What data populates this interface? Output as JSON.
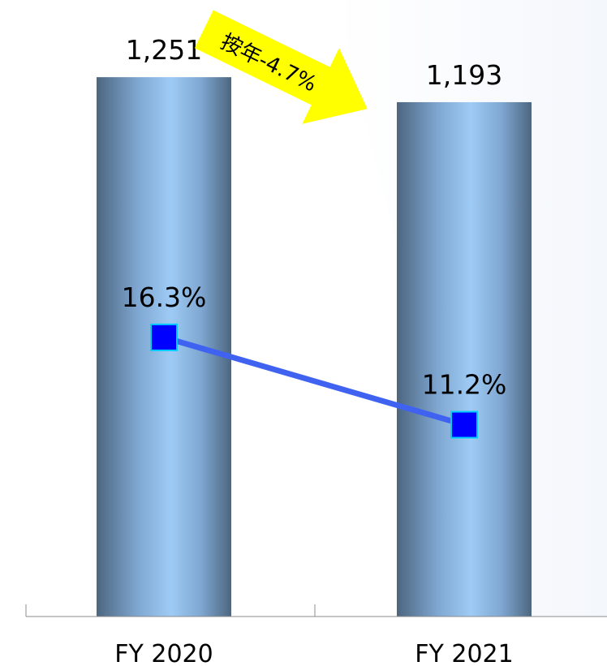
{
  "chart_data": {
    "type": "bar",
    "categories": [
      "FY 2020",
      "FY 2021"
    ],
    "series": [
      {
        "values": [
          1251,
          1193
        ],
        "value_labels": [
          "1,251",
          "1,193"
        ],
        "color": "#9ecbf5"
      },
      {
        "type": "line",
        "values": [
          16.3,
          11.2
        ],
        "value_labels": [
          "16.3%",
          "11.2%"
        ],
        "color": "#3f63f0",
        "marker_color": "#0000ff"
      }
    ],
    "annotation": {
      "text": "按年-4.7%",
      "color": "#ffff00"
    },
    "ylim": [
      0,
      1430
    ],
    "y2lim": [
      0,
      36
    ],
    "grid": false,
    "legend": false
  }
}
